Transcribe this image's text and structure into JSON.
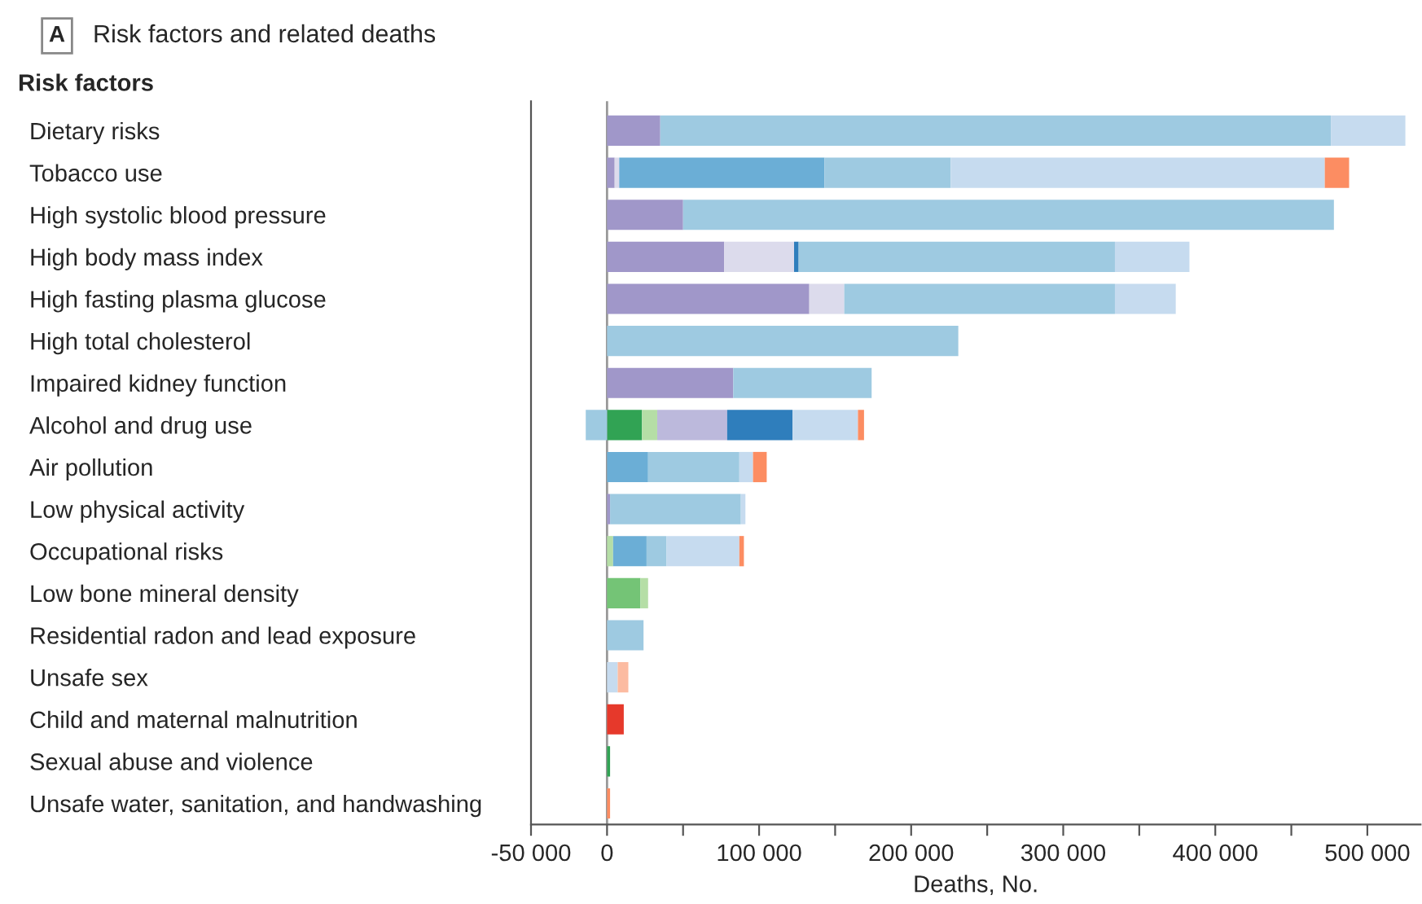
{
  "chart_data": {
    "type": "bar",
    "orientation": "horizontal",
    "stacked": true,
    "title": "Risk factors and related deaths",
    "annotations": [
      "A",
      "Risk factors"
    ],
    "xlabel": "Deaths, No.",
    "categories": [
      "Dietary risks",
      "Tobacco use",
      "High systolic blood pressure",
      "High body mass index",
      "High fasting plasma glucose",
      "High total cholesterol",
      "Impaired kidney function",
      "Alcohol and drug use",
      "Air pollution",
      "Low physical activity",
      "Occupational risks",
      "Low bone mineral density",
      "Residential radon and lead exposure",
      "Unsafe sex",
      "Child and maternal malnutrition",
      "Sexual abuse and violence",
      "Unsafe water, sanitation, and handwashing"
    ],
    "series": [
      {
        "color": "#a097c9",
        "values": [
          35000,
          5000,
          50000,
          77000,
          133000,
          null,
          83000,
          null,
          null,
          2000,
          null,
          null,
          null,
          null,
          null,
          null,
          null
        ]
      },
      {
        "color": "#31a354",
        "values": [
          null,
          null,
          null,
          null,
          null,
          null,
          null,
          23000,
          null,
          null,
          null,
          null,
          null,
          null,
          null,
          2000,
          null
        ]
      },
      {
        "color": "#74c476",
        "values": [
          null,
          null,
          null,
          null,
          null,
          null,
          null,
          null,
          null,
          null,
          null,
          22000,
          null,
          null,
          null,
          null,
          null
        ]
      },
      {
        "color": "#b5dea6",
        "values": [
          null,
          null,
          null,
          null,
          null,
          null,
          null,
          10000,
          null,
          null,
          4000,
          5000,
          null,
          null,
          null,
          null,
          null
        ]
      },
      {
        "color": "#dcdbec",
        "values": [
          null,
          3000,
          null,
          46000,
          23000,
          null,
          null,
          null,
          null,
          null,
          null,
          null,
          null,
          null,
          null,
          null,
          null
        ]
      },
      {
        "color": "#bcb9dc",
        "values": [
          null,
          null,
          null,
          null,
          null,
          null,
          null,
          46000,
          null,
          null,
          null,
          null,
          null,
          null,
          null,
          null,
          null
        ]
      },
      {
        "color": "#6baed6",
        "values": [
          null,
          135000,
          null,
          null,
          null,
          null,
          null,
          null,
          27000,
          null,
          22000,
          null,
          null,
          null,
          null,
          null,
          null
        ]
      },
      {
        "color": "#2f7ebc",
        "values": [
          null,
          null,
          null,
          3000,
          null,
          null,
          null,
          43000,
          null,
          null,
          null,
          null,
          null,
          null,
          null,
          null,
          null
        ]
      },
      {
        "color": "#9ecae1",
        "values": [
          441000,
          83000,
          428000,
          208000,
          178000,
          231000,
          91000,
          -14000,
          60000,
          86000,
          13000,
          null,
          24000,
          null,
          null,
          null,
          null
        ]
      },
      {
        "color": "#c6dbef",
        "values": [
          49000,
          246000,
          null,
          49000,
          40000,
          null,
          null,
          43000,
          9000,
          3000,
          48000,
          null,
          null,
          7000,
          null,
          null,
          null
        ]
      },
      {
        "color": "#fc8d62",
        "values": [
          null,
          16000,
          null,
          null,
          null,
          null,
          null,
          4000,
          9000,
          null,
          3000,
          null,
          null,
          null,
          null,
          null,
          2000
        ]
      },
      {
        "color": "#fcbba1",
        "values": [
          null,
          null,
          null,
          null,
          null,
          null,
          null,
          null,
          null,
          null,
          null,
          null,
          null,
          7000,
          null,
          null,
          null
        ]
      },
      {
        "color": "#e6392b",
        "values": [
          null,
          null,
          null,
          null,
          null,
          null,
          null,
          null,
          null,
          null,
          null,
          null,
          null,
          null,
          11000,
          null,
          null
        ]
      }
    ],
    "ref_lines": [
      {
        "axis": "x",
        "value": 0,
        "color": "#999999"
      }
    ],
    "xlim": [
      -50000,
      535000
    ],
    "xticks": [
      {
        "value": -50000,
        "label": "-50 000"
      },
      0,
      {
        "value": 50000,
        "label": null
      },
      {
        "value": 100000,
        "label": "100 000"
      },
      {
        "value": 150000,
        "label": null
      },
      {
        "value": 200000,
        "label": "200 000"
      },
      {
        "value": 250000,
        "label": null
      },
      {
        "value": 300000,
        "label": "300 000"
      },
      {
        "value": 350000,
        "label": null
      },
      {
        "value": 400000,
        "label": "400 000"
      },
      {
        "value": 450000,
        "label": null
      },
      {
        "value": 500000,
        "label": "500 000"
      }
    ],
    "grid": false,
    "legend": false
  }
}
